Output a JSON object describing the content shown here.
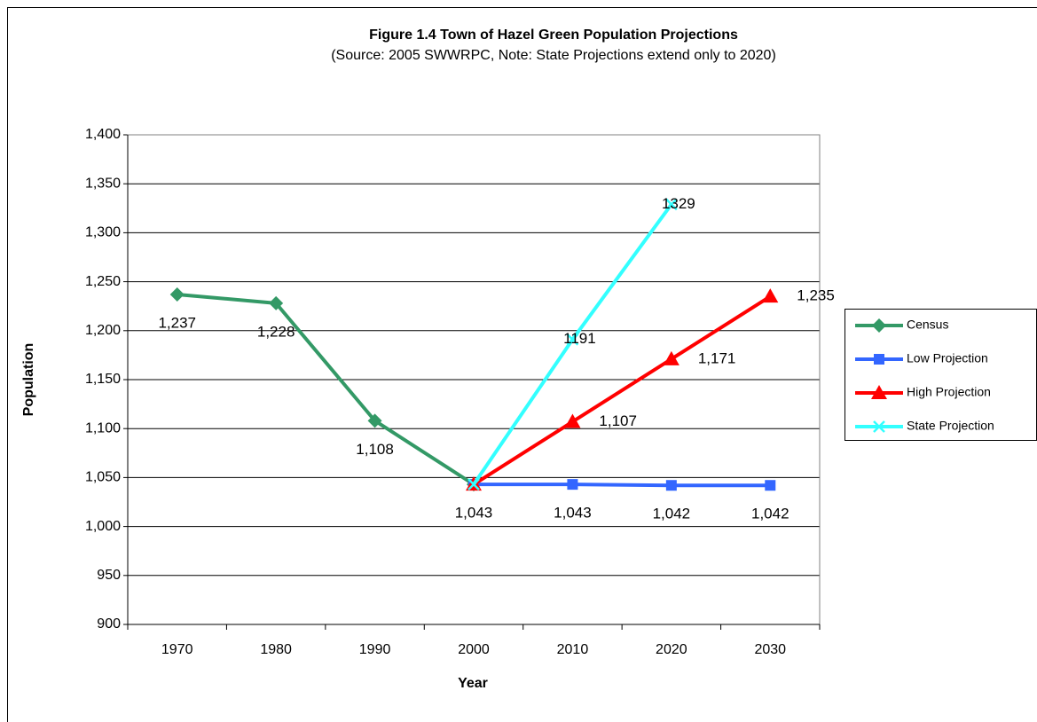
{
  "chart_data": {
    "type": "line",
    "title": "Figure 1.4 Town of Hazel Green Population Projections",
    "subtitle": "(Source:  2005 SWWRPC, Note:  State Projections extend only to 2020)",
    "x_label": "Year",
    "y_label": "Population",
    "categories": [
      "1970",
      "1980",
      "1990",
      "2000",
      "2010",
      "2020",
      "2030"
    ],
    "series": [
      {
        "name": "Census",
        "color": "#339966",
        "marker": "diamond",
        "values": [
          1237,
          1228,
          1108,
          1043,
          null,
          null,
          null
        ],
        "value_labels": [
          "1,237",
          "1,228",
          "1,108",
          "1,043",
          null,
          null,
          null
        ]
      },
      {
        "name": "Low Projection",
        "color": "#3366ff",
        "marker": "square",
        "values": [
          null,
          null,
          null,
          1043,
          1043,
          1042,
          1042
        ],
        "value_labels": [
          null,
          null,
          null,
          null,
          "1,043",
          "1,042",
          "1,042"
        ]
      },
      {
        "name": "High Projection",
        "color": "#ff0000",
        "marker": "triangle",
        "values": [
          null,
          null,
          null,
          1043,
          1107,
          1171,
          1235
        ],
        "value_labels": [
          null,
          null,
          null,
          null,
          "1,107",
          "1,171",
          "1,235"
        ]
      },
      {
        "name": "State Projection",
        "color": "#33ffff",
        "marker": "x",
        "values": [
          null,
          null,
          null,
          1043,
          1191,
          1329,
          null
        ],
        "value_labels": [
          null,
          null,
          null,
          null,
          "1191",
          "1329",
          null
        ]
      }
    ],
    "ylim": [
      900,
      1400
    ],
    "yticks": [
      900,
      950,
      {
        "value": 1000,
        "label": "1,000"
      },
      {
        "value": 1050,
        "label": "1,050"
      },
      {
        "value": 1100,
        "label": "1,100"
      },
      {
        "value": 1150,
        "label": "1,150"
      },
      {
        "value": 1200,
        "label": "1,200"
      },
      {
        "value": 1250,
        "label": "1,250"
      },
      {
        "value": 1300,
        "label": "1,300"
      },
      {
        "value": 1350,
        "label": "1,350"
      },
      {
        "value": 1400,
        "label": "1,400"
      }
    ],
    "grid": true,
    "legend": "right"
  }
}
